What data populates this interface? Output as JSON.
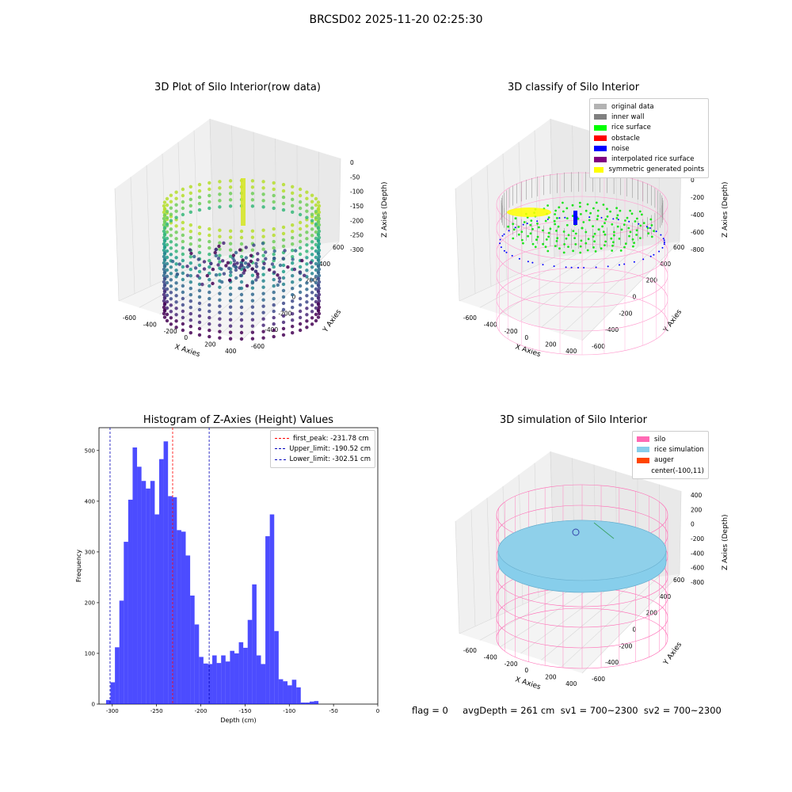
{
  "suptitle": "BRCSD02 2025-11-20 02:25:30",
  "panels": {
    "raw": {
      "title": "3D Plot of Silo Interior(row data)",
      "xlabel": "X Axies",
      "ylabel": "Y Axies",
      "zlabel": "Z Axies (Depth)",
      "xticks": [
        "-600",
        "-400",
        "-200",
        "0",
        "200",
        "400"
      ],
      "yticks": [
        "600",
        "400",
        "200",
        "0",
        "-200",
        "-400",
        "-600"
      ],
      "zticks": [
        "0",
        "-50",
        "-100",
        "-150",
        "-200",
        "-250",
        "-300"
      ]
    },
    "classify": {
      "title": "3D classify of Silo Interior",
      "xlabel": "X Axies",
      "ylabel": "Y Axies",
      "zlabel": "Z Axies (Depth)",
      "xticks": [
        "-600",
        "-400",
        "-200",
        "0",
        "200",
        "400"
      ],
      "yticks": [
        "600",
        "400",
        "200",
        "0",
        "-200",
        "-400",
        "-600"
      ],
      "zticks": [
        "200",
        "0",
        "-200",
        "-400",
        "-600",
        "-800"
      ],
      "zticks_top": "00",
      "legend": [
        {
          "label": "original data",
          "color": "#b3b3b3"
        },
        {
          "label": "inner wall",
          "color": "#808080"
        },
        {
          "label": "rice surface",
          "color": "#00ff00"
        },
        {
          "label": "obstacle",
          "color": "#ff0000"
        },
        {
          "label": "noise",
          "color": "#0000ff"
        },
        {
          "label": "interpolated rice surface",
          "color": "#800080"
        },
        {
          "label": "symmetric generated points",
          "color": "#ffff00"
        }
      ]
    },
    "simulation": {
      "title": "3D simulation of Silo Interior",
      "xlabel": "X Axies",
      "ylabel": "Y Axies",
      "zlabel": "Z Axies (Depth)",
      "xticks": [
        "-600",
        "-400",
        "-200",
        "0",
        "200",
        "400"
      ],
      "yticks": [
        "600",
        "400",
        "200",
        "0",
        "-200",
        "-400",
        "-600"
      ],
      "zticks": [
        "400",
        "200",
        "0",
        "-200",
        "-400",
        "-600",
        "-800"
      ],
      "legend": [
        {
          "label": "silo",
          "color": "#ff69b4"
        },
        {
          "label": "rice simulation",
          "color": "#87ceeb"
        },
        {
          "label": "auger",
          "color": "#ff4500"
        },
        {
          "label": "center(-100,11)",
          "color": ""
        }
      ]
    }
  },
  "chart_data": {
    "type": "bar",
    "title": "Histogram of Z-Axies (Height) Values",
    "xlabel": "Depth (cm)",
    "ylabel": "Frequency",
    "xlim": [
      -315,
      0
    ],
    "ylim": [
      0,
      545
    ],
    "xticks": [
      -300,
      -250,
      -200,
      -150,
      -100,
      -50,
      0
    ],
    "yticks": [
      0,
      100,
      200,
      300,
      400,
      500
    ],
    "bar_color": "#0000ff",
    "bins": [
      {
        "x0": -307,
        "x1": -302,
        "value": 8
      },
      {
        "x0": -302,
        "x1": -297,
        "value": 43
      },
      {
        "x0": -297,
        "x1": -292,
        "value": 112
      },
      {
        "x0": -292,
        "x1": -287,
        "value": 204
      },
      {
        "x0": -287,
        "x1": -282,
        "value": 320
      },
      {
        "x0": -282,
        "x1": -277,
        "value": 403
      },
      {
        "x0": -277,
        "x1": -272,
        "value": 506
      },
      {
        "x0": -272,
        "x1": -267,
        "value": 468
      },
      {
        "x0": -267,
        "x1": -262,
        "value": 440
      },
      {
        "x0": -262,
        "x1": -257,
        "value": 425
      },
      {
        "x0": -257,
        "x1": -252,
        "value": 440
      },
      {
        "x0": -252,
        "x1": -247,
        "value": 374
      },
      {
        "x0": -247,
        "x1": -242,
        "value": 483
      },
      {
        "x0": -242,
        "x1": -237,
        "value": 518
      },
      {
        "x0": -237,
        "x1": -232,
        "value": 410
      },
      {
        "x0": -232,
        "x1": -227,
        "value": 408
      },
      {
        "x0": -227,
        "x1": -222,
        "value": 343
      },
      {
        "x0": -222,
        "x1": -217,
        "value": 340
      },
      {
        "x0": -217,
        "x1": -212,
        "value": 293
      },
      {
        "x0": -212,
        "x1": -207,
        "value": 214
      },
      {
        "x0": -207,
        "x1": -202,
        "value": 157
      },
      {
        "x0": -202,
        "x1": -197,
        "value": 93
      },
      {
        "x0": -197,
        "x1": -192,
        "value": 80
      },
      {
        "x0": -192,
        "x1": -187,
        "value": 79
      },
      {
        "x0": -187,
        "x1": -182,
        "value": 96
      },
      {
        "x0": -182,
        "x1": -177,
        "value": 81
      },
      {
        "x0": -177,
        "x1": -172,
        "value": 96
      },
      {
        "x0": -172,
        "x1": -167,
        "value": 84
      },
      {
        "x0": -167,
        "x1": -162,
        "value": 105
      },
      {
        "x0": -162,
        "x1": -157,
        "value": 100
      },
      {
        "x0": -157,
        "x1": -152,
        "value": 122
      },
      {
        "x0": -152,
        "x1": -147,
        "value": 111
      },
      {
        "x0": -147,
        "x1": -142,
        "value": 166
      },
      {
        "x0": -142,
        "x1": -137,
        "value": 236
      },
      {
        "x0": -137,
        "x1": -132,
        "value": 96
      },
      {
        "x0": -132,
        "x1": -127,
        "value": 79
      },
      {
        "x0": -127,
        "x1": -122,
        "value": 331
      },
      {
        "x0": -122,
        "x1": -117,
        "value": 374
      },
      {
        "x0": -117,
        "x1": -112,
        "value": 144
      },
      {
        "x0": -112,
        "x1": -107,
        "value": 49
      },
      {
        "x0": -107,
        "x1": -102,
        "value": 45
      },
      {
        "x0": -102,
        "x1": -97,
        "value": 37
      },
      {
        "x0": -97,
        "x1": -92,
        "value": 48
      },
      {
        "x0": -92,
        "x1": -87,
        "value": 33
      },
      {
        "x0": -87,
        "x1": -82,
        "value": 3
      },
      {
        "x0": -82,
        "x1": -77,
        "value": 3
      },
      {
        "x0": -77,
        "x1": -72,
        "value": 5
      },
      {
        "x0": -72,
        "x1": -67,
        "value": 6
      }
    ],
    "vlines": [
      {
        "x": -231.78,
        "color": "#ff0000",
        "label": "first_peak: -231.78 cm"
      },
      {
        "x": -190.52,
        "color": "#0000bb",
        "label": "Upper_limit: -190.52 cm"
      },
      {
        "x": -302.51,
        "color": "#0000bb",
        "label": "Lower_limit: -302.51 cm"
      }
    ],
    "legend_position": "upper right"
  },
  "footer": "flag = 0     avgDepth = 261 cm  sv1 = 700~2300  sv2 = 700~2300"
}
